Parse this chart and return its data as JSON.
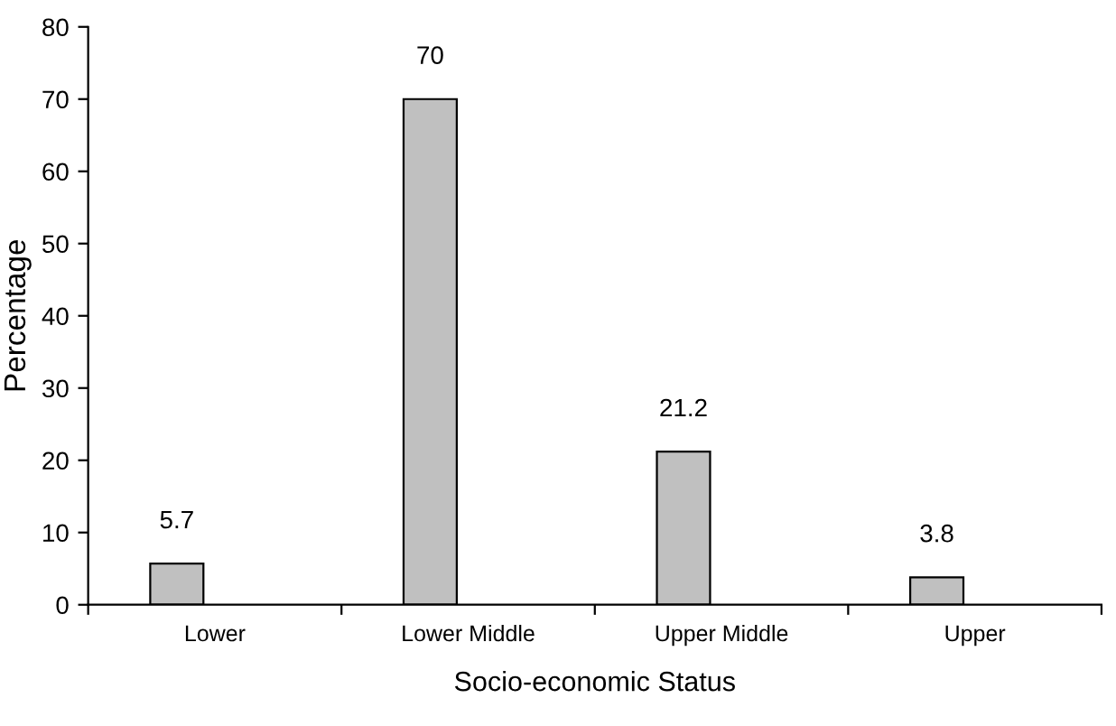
{
  "chart_data": {
    "type": "bar",
    "xlabel": "Socio-economic Status",
    "ylabel": "Percentage",
    "categories": [
      "Lower",
      "Lower Middle",
      "Upper Middle",
      "Upper"
    ],
    "values": [
      5.7,
      70,
      21.2,
      3.8
    ],
    "color": "#c0c0c0",
    "ylim": [
      0,
      80
    ],
    "yticks": [
      0,
      10,
      20,
      30,
      40,
      50,
      60,
      70,
      80
    ],
    "data_labels": true,
    "grid": false,
    "legend": false
  }
}
